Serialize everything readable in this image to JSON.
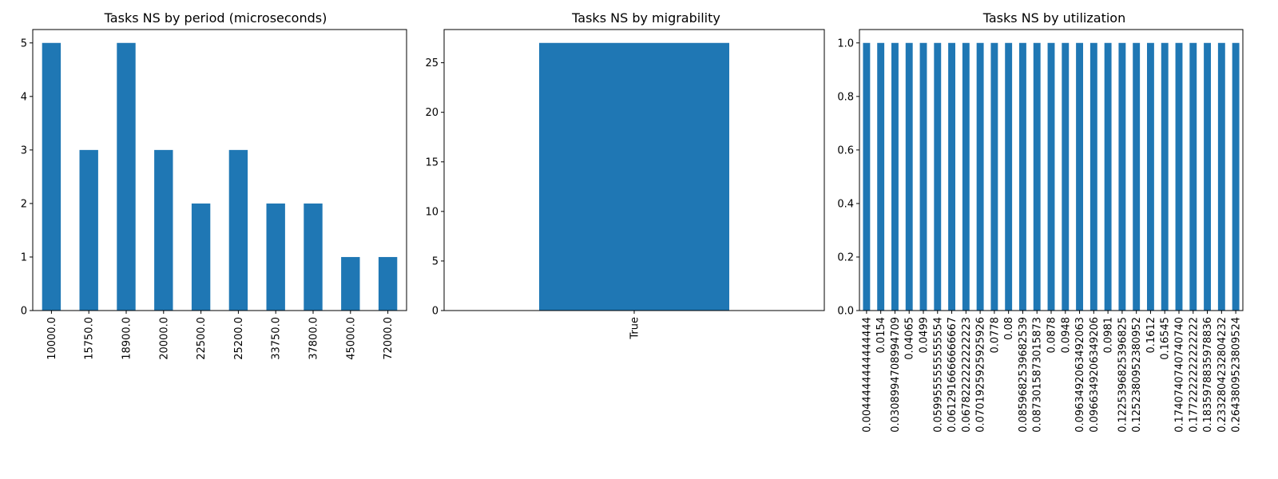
{
  "figure": {
    "bar_color": "#1f77b4",
    "axes_color": "#000000",
    "background": "#ffffff"
  },
  "chart_data": [
    {
      "type": "bar",
      "title": "Tasks NS by period (microseconds)",
      "xlabel": "",
      "ylabel": "",
      "categories": [
        "10000.0",
        "15750.0",
        "18900.0",
        "20000.0",
        "22500.0",
        "25200.0",
        "33750.0",
        "37800.0",
        "45000.0",
        "72000.0"
      ],
      "values": [
        5,
        3,
        5,
        3,
        2,
        3,
        2,
        2,
        1,
        1
      ],
      "ylim": [
        0,
        5.25
      ],
      "yticks": [
        0,
        1,
        2,
        3,
        4,
        5
      ],
      "ytick_labels": [
        "0",
        "1",
        "2",
        "3",
        "4",
        "5"
      ],
      "grid": false,
      "legend": false
    },
    {
      "type": "bar",
      "title": "Tasks NS by migrability",
      "xlabel": "",
      "ylabel": "",
      "categories": [
        "True"
      ],
      "values": [
        27
      ],
      "ylim": [
        0,
        28.35
      ],
      "yticks": [
        0,
        5,
        10,
        15,
        20,
        25
      ],
      "ytick_labels": [
        "0",
        "5",
        "10",
        "15",
        "20",
        "25"
      ],
      "grid": false,
      "legend": false
    },
    {
      "type": "bar",
      "title": "Tasks NS by utilization",
      "xlabel": "",
      "ylabel": "",
      "categories": [
        "0.0044444444444444",
        "0.0154",
        "0.0308994708994709",
        "0.04065",
        "0.0499",
        "0.0599555555555554",
        "0.0612916666666667",
        "0.0678222222222223",
        "0.0701925925925926",
        "0.0778",
        "0.08",
        "0.0859682539682539",
        "0.0873015873015873",
        "0.0878",
        "0.0948",
        "0.0963492063492063",
        "0.0966349206349206",
        "0.0981",
        "0.1225396825396825",
        "0.1252380952380952",
        "0.1612",
        "0.16545",
        "0.1740740740740740",
        "0.1772222222222222",
        "0.1835978835978836",
        "0.2332804232804232",
        "0.2643809523809524"
      ],
      "values": [
        1,
        1,
        1,
        1,
        1,
        1,
        1,
        1,
        1,
        1,
        1,
        1,
        1,
        1,
        1,
        1,
        1,
        1,
        1,
        1,
        1,
        1,
        1,
        1,
        1,
        1,
        1
      ],
      "ylim": [
        0,
        1.05
      ],
      "yticks": [
        0.0,
        0.2,
        0.4,
        0.6,
        0.8,
        1.0
      ],
      "ytick_labels": [
        "0.0",
        "0.2",
        "0.4",
        "0.6",
        "0.8",
        "1.0"
      ],
      "grid": false,
      "legend": false
    }
  ]
}
